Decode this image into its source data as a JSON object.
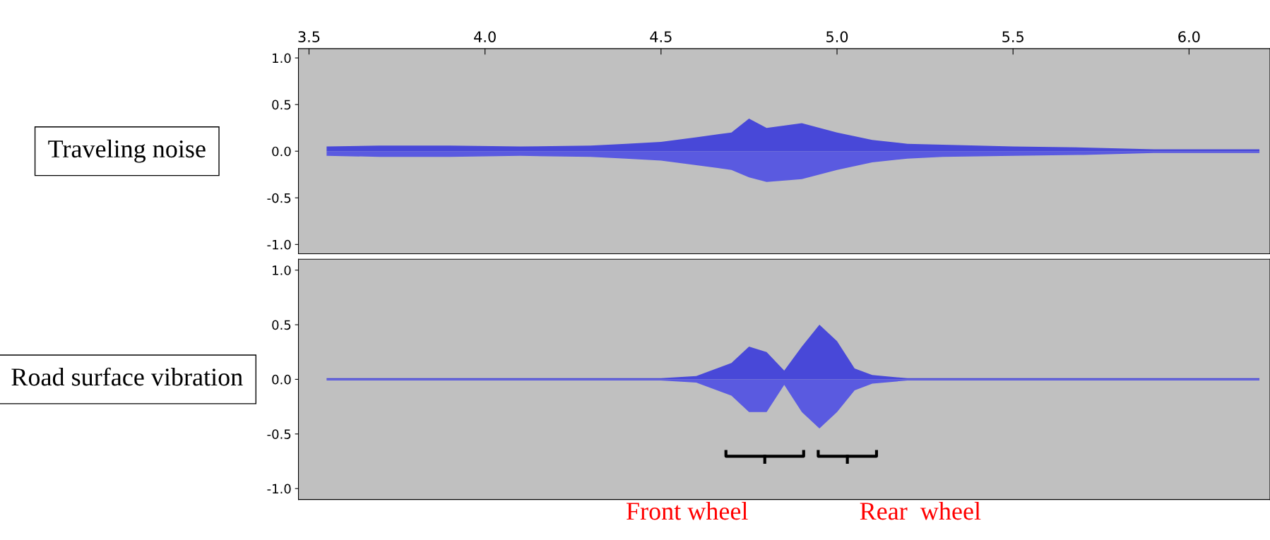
{
  "chart_data": [
    {
      "type": "area",
      "xlim": [
        3.47,
        6.23
      ],
      "xticks": [
        {
          "value": 3.5,
          "label": "3.5"
        },
        {
          "value": 4,
          "label": "4.0"
        },
        {
          "value": 4.5,
          "label": "4.5"
        },
        {
          "value": 5,
          "label": "5.0"
        },
        {
          "value": 5.5,
          "label": "5.5"
        },
        {
          "value": 6,
          "label": "6.0"
        }
      ],
      "ylim": [
        -1.1,
        1.1
      ],
      "yticks": [
        {
          "value": 1,
          "label": "1.0"
        },
        {
          "value": 0.5,
          "label": "0.5"
        },
        {
          "value": 0,
          "label": "0.0"
        },
        {
          "value": -0.5,
          "label": "-0.5"
        },
        {
          "value": -1,
          "label": "-1.0"
        }
      ],
      "x": [
        3.55,
        3.7,
        3.9,
        4.1,
        4.3,
        4.4,
        4.5,
        4.6,
        4.7,
        4.75,
        4.8,
        4.9,
        5.0,
        5.1,
        5.2,
        5.3,
        5.5,
        5.7,
        5.9,
        6.2
      ],
      "series": [
        {
          "color": "#4848d8",
          "values": [
            0.05,
            0.06,
            0.06,
            0.05,
            0.06,
            0.08,
            0.1,
            0.15,
            0.2,
            0.35,
            0.25,
            0.3,
            0.2,
            0.12,
            0.08,
            0.07,
            0.05,
            0.04,
            0.02,
            0.02
          ]
        },
        {
          "color": "#5a5ae0",
          "values": [
            -0.05,
            -0.06,
            -0.06,
            -0.05,
            -0.06,
            -0.08,
            -0.1,
            -0.15,
            -0.2,
            -0.28,
            -0.33,
            -0.3,
            -0.2,
            -0.12,
            -0.08,
            -0.06,
            -0.05,
            -0.04,
            -0.02,
            -0.02
          ]
        }
      ],
      "annotations": [
        "Traveling noise"
      ],
      "grid": false,
      "legend": false
    },
    {
      "type": "area",
      "xlim": [
        3.47,
        6.23
      ],
      "ylim": [
        -1.1,
        1.1
      ],
      "tick_labels": "y",
      "yticks": [
        {
          "value": 1,
          "label": "1.0"
        },
        {
          "value": 0.5,
          "label": "0.5"
        },
        {
          "value": 0,
          "label": "0.0"
        },
        {
          "value": -0.5,
          "label": "-0.5"
        },
        {
          "value": -1,
          "label": "-1.0"
        }
      ],
      "x": [
        3.55,
        4.0,
        4.5,
        4.6,
        4.7,
        4.75,
        4.8,
        4.85,
        4.9,
        4.95,
        5.0,
        5.05,
        5.1,
        5.2,
        5.6,
        6.2
      ],
      "series": [
        {
          "color": "#4848d8",
          "values": [
            0.01,
            0.01,
            0.01,
            0.03,
            0.15,
            0.3,
            0.25,
            0.08,
            0.3,
            0.5,
            0.35,
            0.1,
            0.04,
            0.01,
            0.01,
            0.01
          ]
        },
        {
          "color": "#5a5ae0",
          "values": [
            -0.01,
            -0.01,
            -0.01,
            -0.03,
            -0.15,
            -0.3,
            -0.3,
            -0.05,
            -0.3,
            -0.45,
            -0.3,
            -0.1,
            -0.04,
            -0.01,
            -0.01,
            -0.01
          ]
        }
      ],
      "annotations": [
        "Road surface vibration",
        "Front wheel",
        "Rear  wheel"
      ],
      "grid": false,
      "legend": false
    }
  ]
}
